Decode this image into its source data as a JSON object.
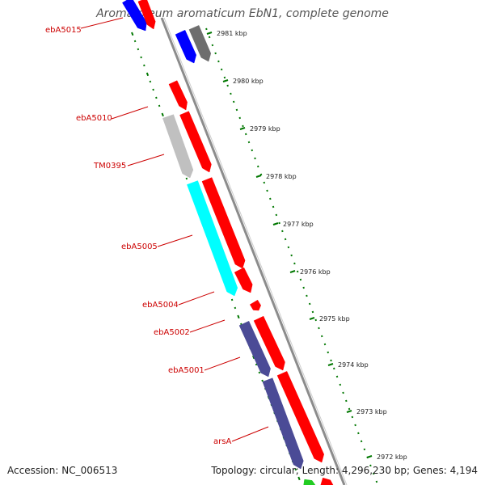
{
  "title": "Aromatoleum aromaticum EbN1, complete genome",
  "footer": {
    "accession": "Accession: NC_006513",
    "summary": "Topology: circular; Length: 4,296,230 bp; Genes: 4,194"
  },
  "colors": {
    "backbone": "#8c8c8c",
    "red": "#ff0000",
    "blue": "#0000ff",
    "grey": "#c0c0c0",
    "darkgrey": "#6e6e6e",
    "cyan": "#00ffff",
    "purple": "#4b4b96",
    "green": "#22cc22",
    "tick": "#007700",
    "label": "#cc0000"
  },
  "kbp_labels": [
    "2981 kbp",
    "2980 kbp",
    "2979 kbp",
    "2978 kbp",
    "2977 kbp",
    "2976 kbp",
    "2975 kbp",
    "2974 kbp",
    "2973 kbp",
    "2972 kbp"
  ],
  "gene_labels": [
    "ebA5015",
    "ebA5010",
    "TM0395",
    "ebA5005",
    "ebA5004",
    "ebA5002",
    "ebA5001",
    "arsA"
  ]
}
